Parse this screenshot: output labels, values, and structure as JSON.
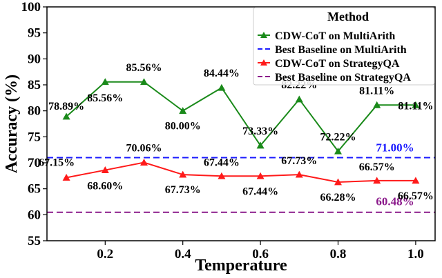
{
  "chart_data": {
    "type": "line",
    "xlabel": "Temperature",
    "ylabel": "Accuracy (%)",
    "xlim": [
      0.05,
      1.05
    ],
    "ylim": [
      55,
      100
    ],
    "xticks": [
      0.2,
      0.4,
      0.6,
      0.8,
      1.0
    ],
    "xtick_labels": [
      "0.2",
      "0.4",
      "0.6",
      "0.8",
      "1.0"
    ],
    "yticks": [
      55,
      60,
      65,
      70,
      75,
      80,
      85,
      90,
      95,
      100
    ],
    "ytick_labels": [
      "55",
      "60",
      "65",
      "70",
      "75",
      "80",
      "85",
      "90",
      "95",
      "100"
    ],
    "x": [
      0.1,
      0.2,
      0.3,
      0.4,
      0.5,
      0.6,
      0.7,
      0.8,
      0.9,
      1.0
    ],
    "grid": false,
    "legend": {
      "title": "Method",
      "position": "top-right"
    },
    "series": [
      {
        "name": "CDW-CoT on MultiArith",
        "color": "#1a8a1a",
        "marker": "triangle",
        "values": [
          78.89,
          85.56,
          85.56,
          80.0,
          84.44,
          73.33,
          82.22,
          72.22,
          81.11,
          81.11
        ],
        "labels": [
          "78.89%",
          "85.56%",
          "85.56%",
          "80.00%",
          "84.44%",
          "73.33%",
          "82.22%",
          "72.22%",
          "81.11%",
          "81.11%"
        ]
      },
      {
        "name": "CDW-CoT on StrategyQA",
        "color": "#ff1a1a",
        "marker": "triangle",
        "values": [
          67.15,
          68.6,
          70.06,
          67.73,
          67.44,
          67.44,
          67.73,
          66.28,
          66.57,
          66.57
        ],
        "labels": [
          "67.15%",
          "68.60%",
          "70.06%",
          "67.73%",
          "67.44%",
          "67.44%",
          "67.73%",
          "66.28%",
          "66.57%",
          "66.57%"
        ]
      }
    ],
    "baselines": [
      {
        "name": "Best Baseline on MultiArith",
        "value": 71.0,
        "label": "71.00%",
        "color": "#1a1aff"
      },
      {
        "name": "Best Baseline on StrategyQA",
        "value": 60.48,
        "label": "60.48%",
        "color": "#8b1a8b"
      }
    ]
  }
}
